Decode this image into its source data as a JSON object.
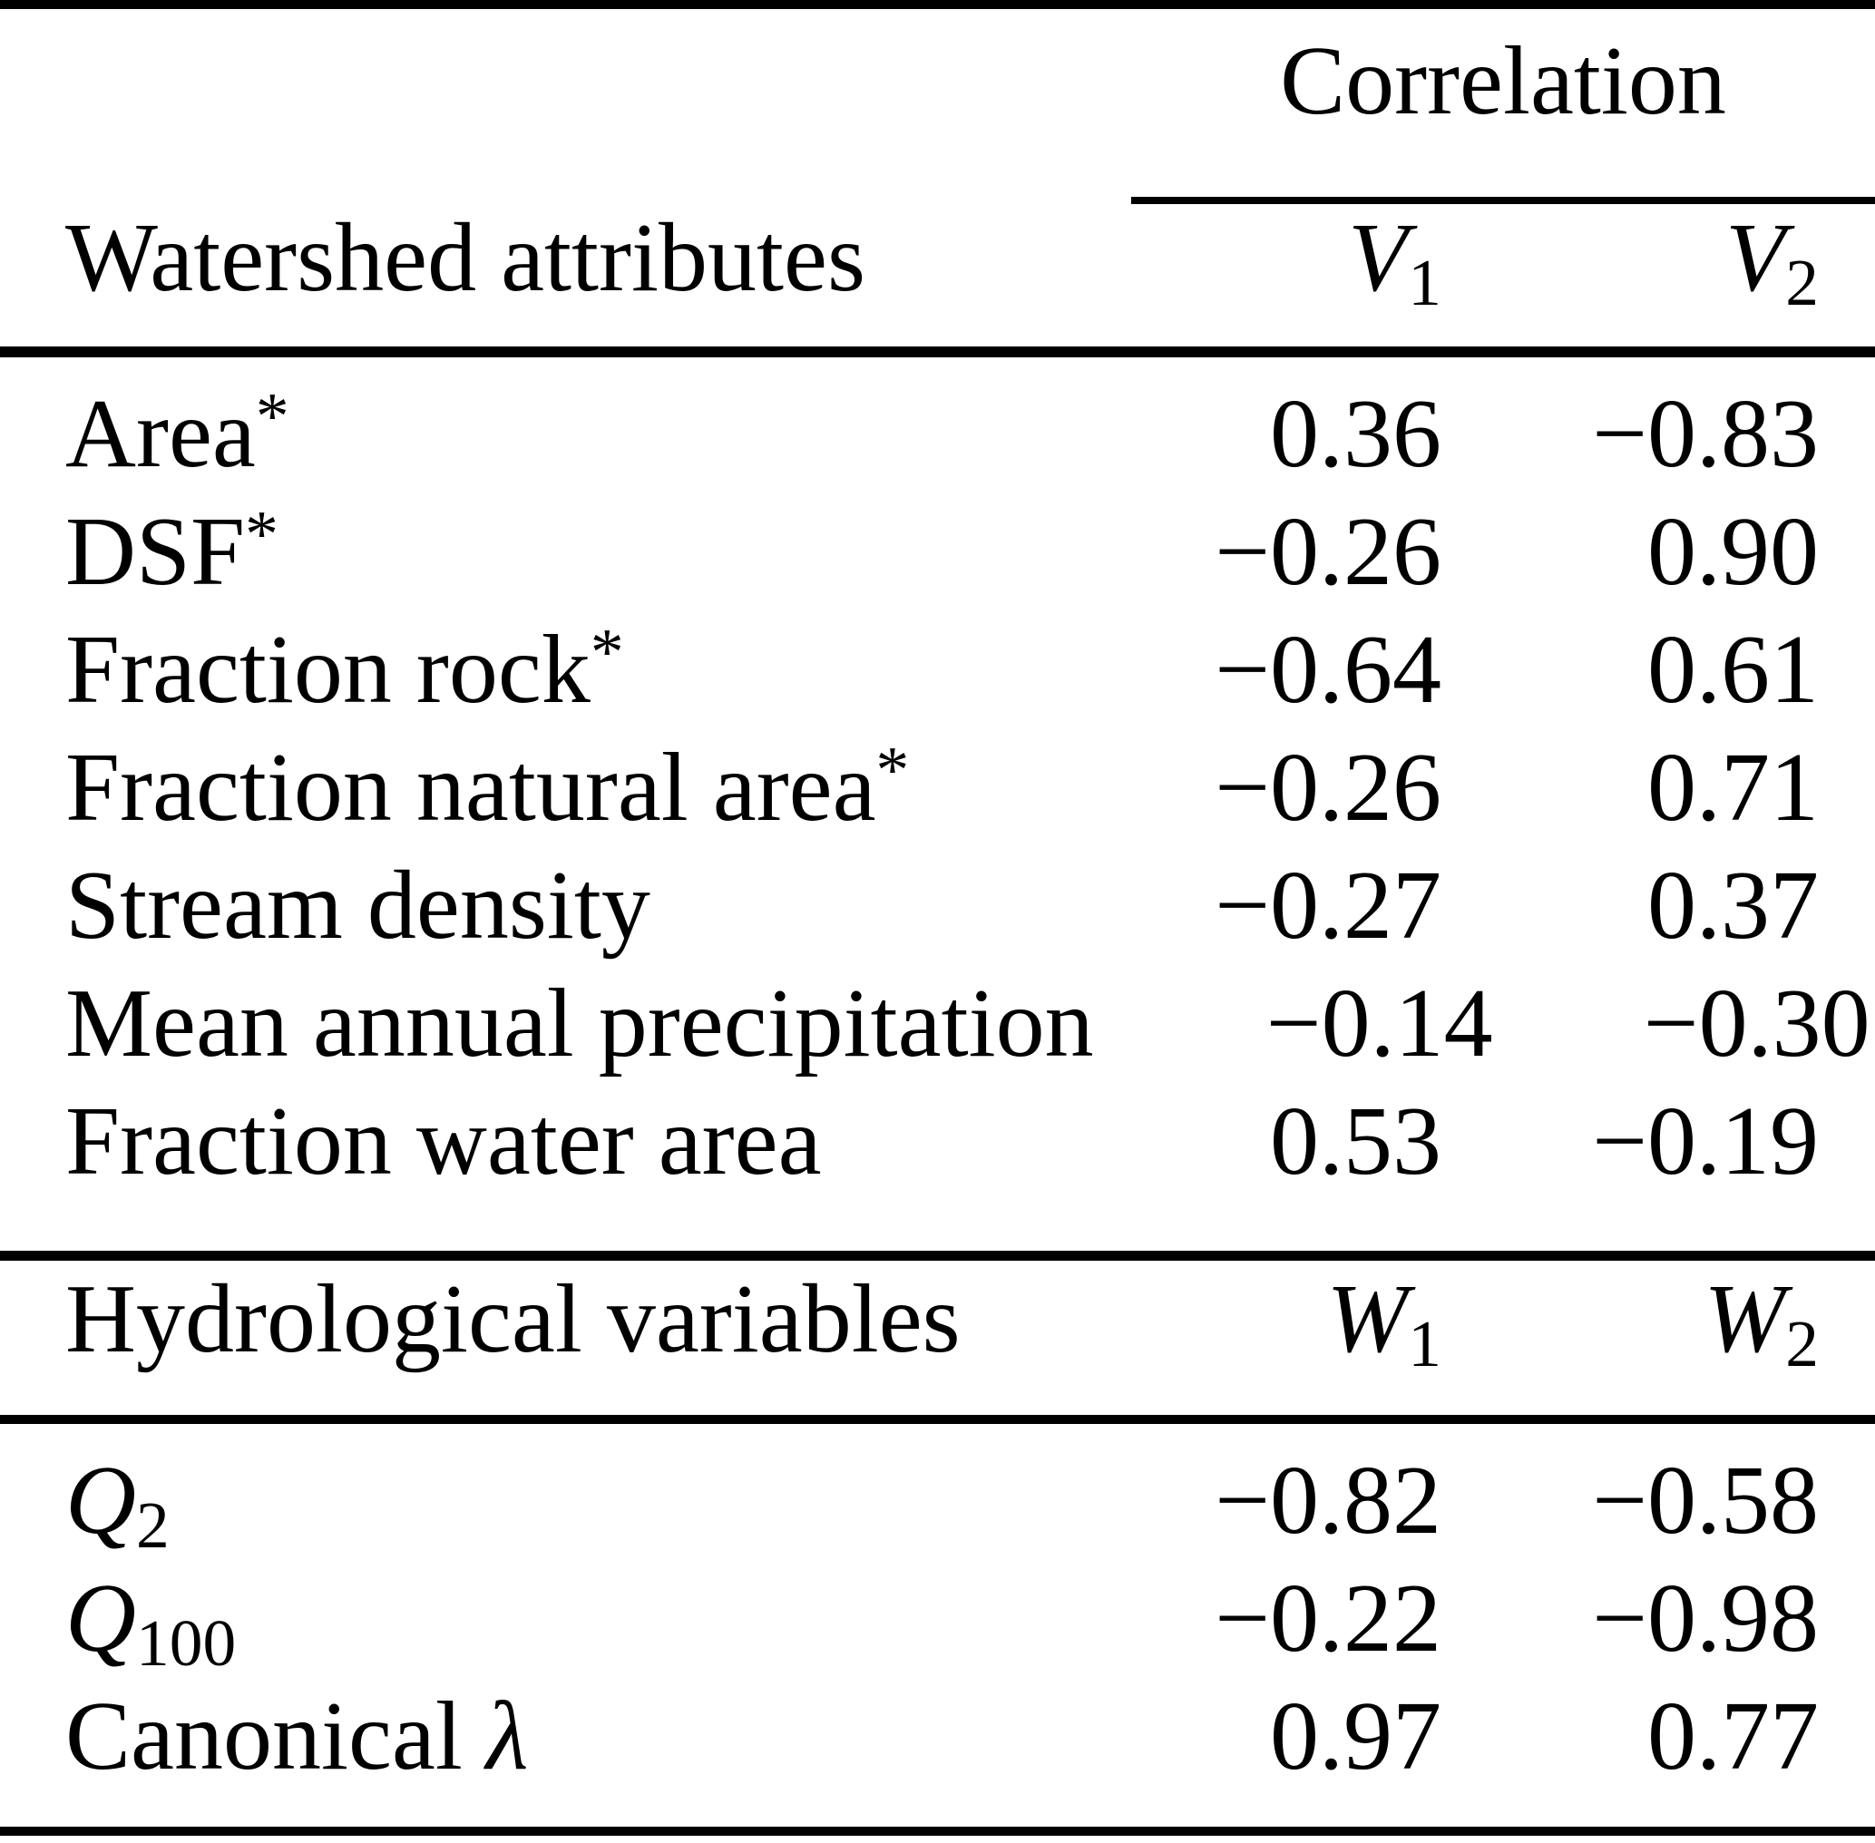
{
  "table": {
    "correlation_header": "Correlation",
    "sections": [
      {
        "header": "Watershed attributes",
        "col1_base": "V",
        "col1_sub": "1",
        "col2_base": "V",
        "col2_sub": "2",
        "rows": [
          {
            "label": "Area",
            "sup": "*",
            "v1": "0.36",
            "v2": "−0.83"
          },
          {
            "label": "DSF",
            "sup": "*",
            "v1": "−0.26",
            "v2": "0.90"
          },
          {
            "label": "Fraction rock",
            "sup": "*",
            "v1": "−0.64",
            "v2": "0.61"
          },
          {
            "label": "Fraction natural area",
            "sup": "*",
            "v1": "−0.26",
            "v2": "0.71"
          },
          {
            "label": "Stream density",
            "v1": "−0.27",
            "v2": "0.37"
          },
          {
            "label": "Mean annual precipitation",
            "v1": "−0.14",
            "v2": "−0.30"
          },
          {
            "label": "Fraction water area",
            "v1": "0.53",
            "v2": "−0.19"
          }
        ]
      },
      {
        "header": "Hydrological variables",
        "col1_base": "W",
        "col1_sub": "1",
        "col2_base": "W",
        "col2_sub": "2",
        "rows": [
          {
            "label_base": "Q",
            "label_sub": "2",
            "v1": "−0.82",
            "v2": "−0.58"
          },
          {
            "label_base": "Q",
            "label_sub": "100",
            "v1": "−0.22",
            "v2": "−0.98"
          },
          {
            "label": "Canonical",
            "label_italic": "λ",
            "v1": "0.97",
            "v2": "0.77"
          }
        ]
      }
    ]
  }
}
